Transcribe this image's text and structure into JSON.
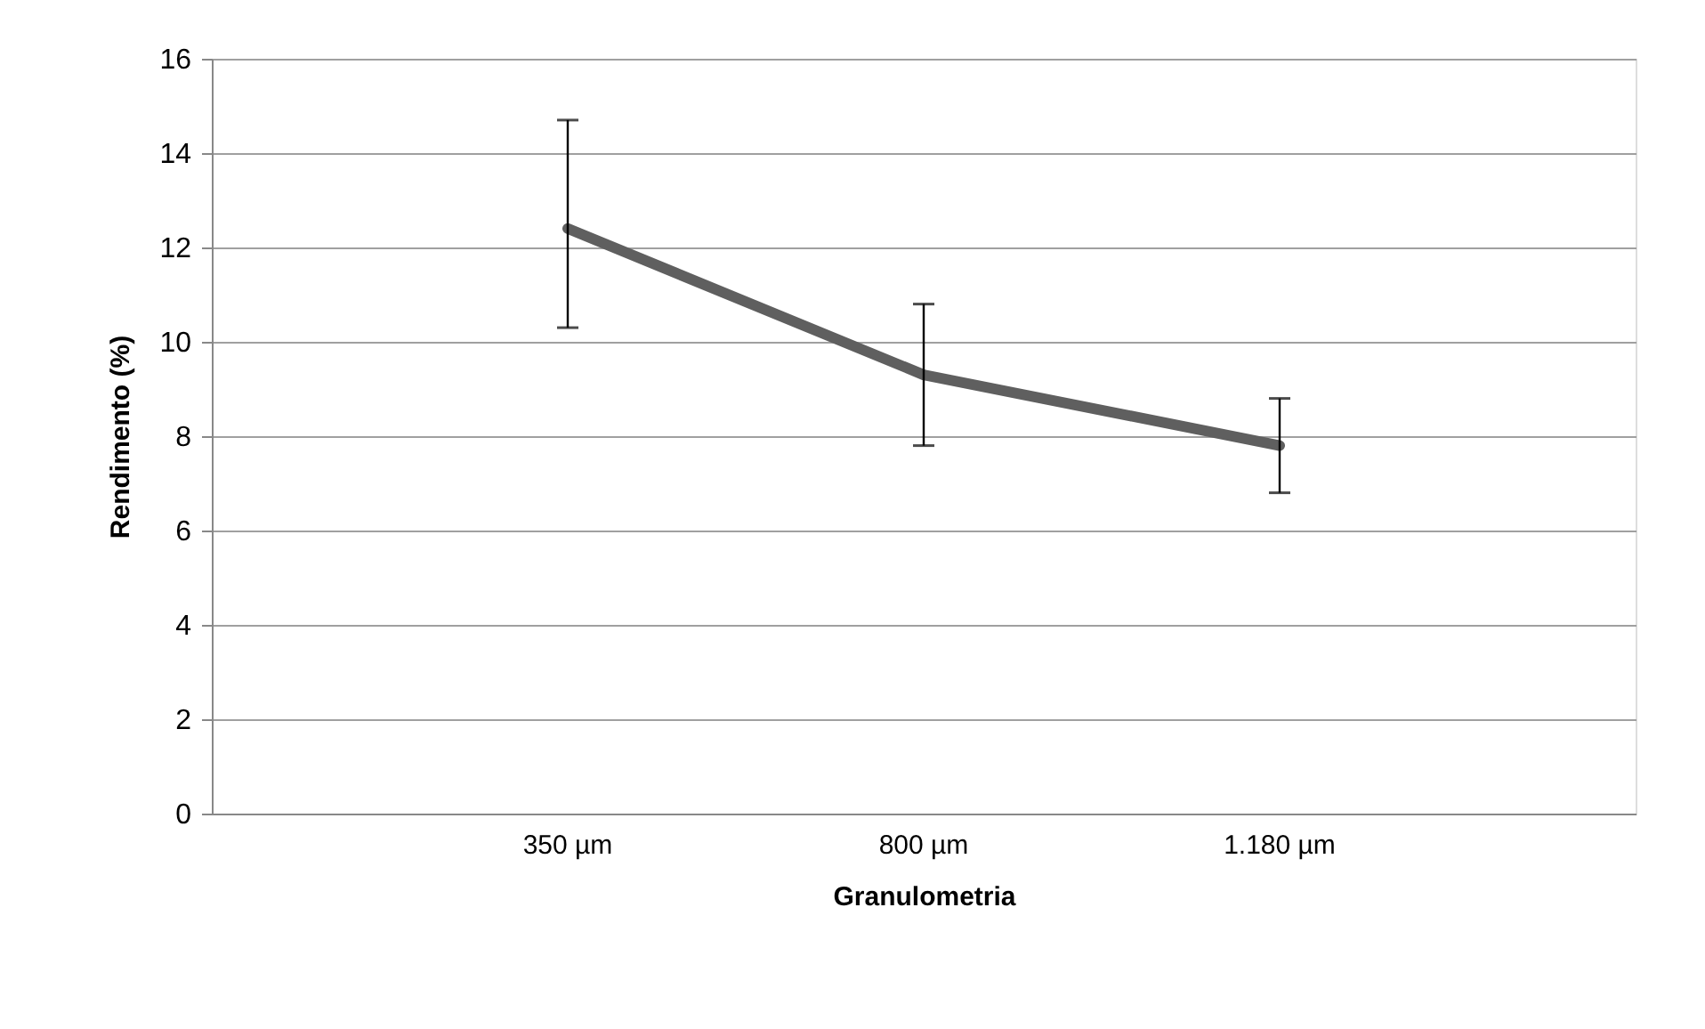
{
  "chart_data": {
    "type": "line",
    "xlabel": "Granulometria",
    "ylabel": "Rendimento (%)",
    "categories": [
      "350 µm",
      "800 µm",
      "1.180 µm"
    ],
    "series": [
      {
        "color": "#5f5f5f",
        "values": [
          12.4,
          9.3,
          7.8
        ],
        "errors": [
          [
            10.3,
            14.7
          ],
          [
            7.8,
            10.8
          ],
          [
            6.8,
            8.8
          ]
        ]
      }
    ],
    "ylim": [
      0,
      16
    ],
    "yticks": [
      0,
      2,
      4,
      6,
      8,
      10,
      12,
      14,
      16
    ],
    "grid": "y",
    "marker": "none",
    "line_style": "solid"
  }
}
